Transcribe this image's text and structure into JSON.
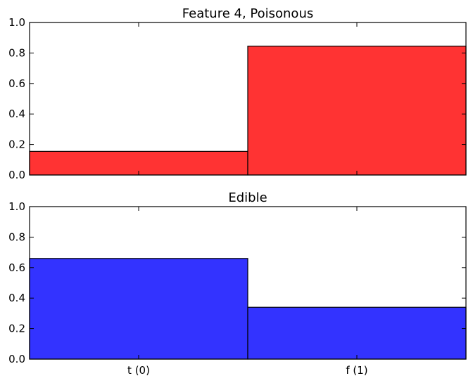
{
  "chart_data": [
    {
      "type": "bar",
      "title": "Feature 4, Poisonous",
      "categories": [
        "t (0)",
        "f (1)"
      ],
      "values": [
        0.155,
        0.845
      ],
      "ylim": [
        0,
        1.0
      ],
      "yticks": [
        0.0,
        0.2,
        0.4,
        0.6,
        0.8,
        1.0
      ],
      "ytick_labels": [
        "0.0",
        "0.2",
        "0.4",
        "0.6",
        "0.8",
        "1.0"
      ],
      "show_xtick_labels": false,
      "color": "#ff3333",
      "grid": false
    },
    {
      "type": "bar",
      "title": "Edible",
      "categories": [
        "t (0)",
        "f (1)"
      ],
      "values": [
        0.66,
        0.34
      ],
      "ylim": [
        0,
        1.0
      ],
      "yticks": [
        0.0,
        0.2,
        0.4,
        0.6,
        0.8,
        1.0
      ],
      "ytick_labels": [
        "0.0",
        "0.2",
        "0.4",
        "0.6",
        "0.8",
        "1.0"
      ],
      "show_xtick_labels": true,
      "color": "#3333ff",
      "grid": false
    }
  ]
}
